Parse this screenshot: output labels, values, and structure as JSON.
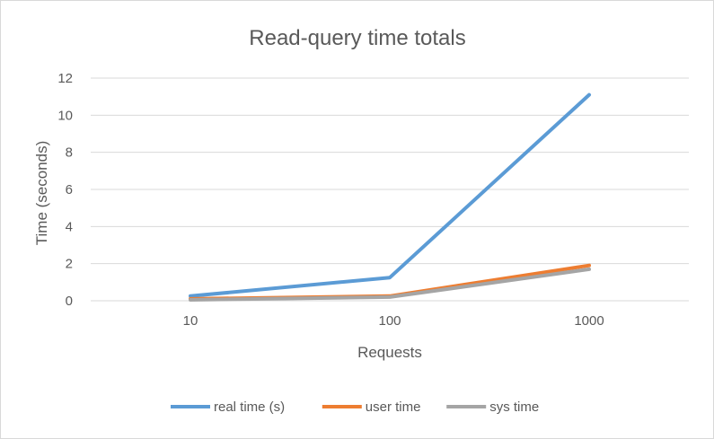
{
  "chart_data": {
    "type": "line",
    "title": "Read-query time totals",
    "xlabel": "Requests",
    "ylabel": "Time (seconds)",
    "categories": [
      "10",
      "100",
      "1000"
    ],
    "ylim": [
      0,
      12
    ],
    "yticks": [
      "0",
      "2",
      "4",
      "6",
      "8",
      "10",
      "12"
    ],
    "grid": true,
    "legend_position": "bottom",
    "series": [
      {
        "name": "real time (s)",
        "values": [
          0.25,
          1.25,
          11.1
        ],
        "color": "#5b9bd5"
      },
      {
        "name": "user time",
        "values": [
          0.1,
          0.25,
          1.9
        ],
        "color": "#ed7d31"
      },
      {
        "name": "sys time",
        "values": [
          0.05,
          0.2,
          1.7
        ],
        "color": "#a5a5a5"
      }
    ]
  }
}
